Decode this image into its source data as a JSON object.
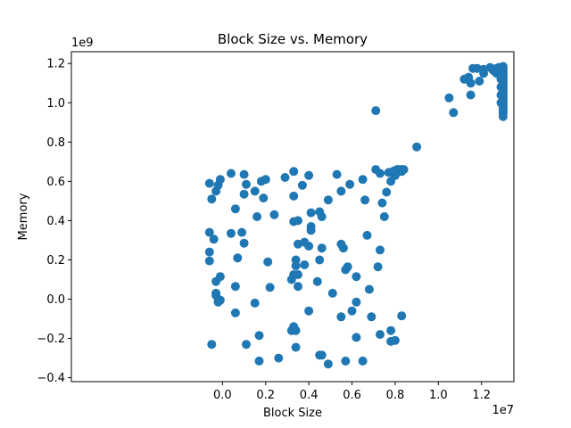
{
  "chart_data": {
    "type": "scatter",
    "title": "Block Size vs. Memory",
    "xlabel": "Block Size",
    "ylabel": "Memory",
    "x_offset_label": "1e7",
    "y_offset_label": "1e9",
    "xlim": [
      -7000000,
      13500000
    ],
    "ylim": [
      -420000000,
      1260000000
    ],
    "x_ticks": [
      0,
      2000000,
      4000000,
      6000000,
      8000000,
      10000000,
      12000000
    ],
    "x_tick_labels": [
      "0.0",
      "0.2",
      "0.4",
      "0.6",
      "0.8",
      "1.0",
      "1.2"
    ],
    "y_ticks": [
      -400000000,
      -200000000,
      0,
      200000000,
      400000000,
      600000000,
      800000000,
      1000000000,
      1200000000
    ],
    "y_tick_labels": [
      "−0.4",
      "−0.2",
      "0.0",
      "0.2",
      "0.4",
      "0.6",
      "0.8",
      "1.0",
      "1.2"
    ],
    "grid": false,
    "legend": "none",
    "marker_color": "#1f77b4",
    "points": [
      [
        -600000,
        590000000
      ],
      [
        -100000,
        610000000
      ],
      [
        400000,
        640000000
      ],
      [
        1000000,
        635000000
      ],
      [
        1800000,
        600000000
      ],
      [
        2900000,
        620000000
      ],
      [
        3300000,
        650000000
      ],
      [
        4000000,
        630000000
      ],
      [
        5300000,
        635000000
      ],
      [
        6500000,
        610000000
      ],
      [
        -200000,
        580000000
      ],
      [
        1100000,
        585000000
      ],
      [
        2000000,
        610000000
      ],
      [
        3700000,
        580000000
      ],
      [
        5900000,
        585000000
      ],
      [
        -300000,
        550000000
      ],
      [
        1500000,
        550000000
      ],
      [
        3300000,
        525000000
      ],
      [
        5500000,
        550000000
      ],
      [
        7600000,
        545000000
      ],
      [
        -500000,
        510000000
      ],
      [
        1000000,
        535000000
      ],
      [
        1900000,
        515000000
      ],
      [
        4900000,
        505000000
      ],
      [
        6600000,
        505000000
      ],
      [
        7400000,
        490000000
      ],
      [
        600000,
        460000000
      ],
      [
        2400000,
        430000000
      ],
      [
        4100000,
        440000000
      ],
      [
        4600000,
        420000000
      ],
      [
        1600000,
        420000000
      ],
      [
        3300000,
        395000000
      ],
      [
        3500000,
        400000000
      ],
      [
        7500000,
        420000000
      ],
      [
        4500000,
        445000000
      ],
      [
        4100000,
        370000000
      ],
      [
        -600000,
        340000000
      ],
      [
        400000,
        335000000
      ],
      [
        900000,
        340000000
      ],
      [
        4100000,
        350000000
      ],
      [
        -400000,
        305000000
      ],
      [
        1000000,
        285000000
      ],
      [
        3500000,
        280000000
      ],
      [
        3800000,
        290000000
      ],
      [
        4000000,
        270000000
      ],
      [
        5500000,
        280000000
      ],
      [
        6700000,
        325000000
      ],
      [
        7300000,
        250000000
      ],
      [
        4600000,
        260000000
      ],
      [
        5600000,
        260000000
      ],
      [
        -600000,
        240000000
      ],
      [
        700000,
        210000000
      ],
      [
        2100000,
        190000000
      ],
      [
        3400000,
        200000000
      ],
      [
        4500000,
        200000000
      ],
      [
        -600000,
        195000000
      ],
      [
        3400000,
        170000000
      ],
      [
        3800000,
        175000000
      ],
      [
        5700000,
        150000000
      ],
      [
        5800000,
        165000000
      ],
      [
        7200000,
        165000000
      ],
      [
        -100000,
        115000000
      ],
      [
        3300000,
        125000000
      ],
      [
        3500000,
        125000000
      ],
      [
        6200000,
        115000000
      ],
      [
        3200000,
        100000000
      ],
      [
        4400000,
        90000000
      ],
      [
        -300000,
        90000000
      ],
      [
        600000,
        65000000
      ],
      [
        2200000,
        60000000
      ],
      [
        3500000,
        65000000
      ],
      [
        6800000,
        50000000
      ],
      [
        5100000,
        30000000
      ],
      [
        -300000,
        30000000
      ],
      [
        -300000,
        20000000
      ],
      [
        -100000,
        -5000000
      ],
      [
        -200000,
        -10000000
      ],
      [
        -200000,
        -15000000
      ],
      [
        1500000,
        -20000000
      ],
      [
        6200000,
        -15000000
      ],
      [
        600000,
        -70000000
      ],
      [
        4000000,
        -60000000
      ],
      [
        6000000,
        -60000000
      ],
      [
        5500000,
        -90000000
      ],
      [
        6900000,
        -90000000
      ],
      [
        8300000,
        -85000000
      ],
      [
        3300000,
        -140000000
      ],
      [
        3200000,
        -160000000
      ],
      [
        3400000,
        -160000000
      ],
      [
        7300000,
        -180000000
      ],
      [
        1700000,
        -185000000
      ],
      [
        6200000,
        -195000000
      ],
      [
        7800000,
        -160000000
      ],
      [
        7800000,
        -215000000
      ],
      [
        8000000,
        -210000000
      ],
      [
        -500000,
        -230000000
      ],
      [
        1100000,
        -230000000
      ],
      [
        3400000,
        -245000000
      ],
      [
        4500000,
        -285000000
      ],
      [
        4600000,
        -285000000
      ],
      [
        2600000,
        -300000000
      ],
      [
        1700000,
        -315000000
      ],
      [
        4900000,
        -330000000
      ],
      [
        5700000,
        -315000000
      ],
      [
        6500000,
        -315000000
      ],
      [
        7100000,
        660000000
      ],
      [
        7300000,
        640000000
      ],
      [
        7700000,
        645000000
      ],
      [
        7800000,
        600000000
      ],
      [
        8000000,
        630000000
      ],
      [
        7900000,
        650000000
      ],
      [
        8000000,
        655000000
      ],
      [
        8100000,
        660000000
      ],
      [
        8200000,
        660000000
      ],
      [
        8300000,
        660000000
      ],
      [
        8400000,
        660000000
      ],
      [
        8100000,
        650000000
      ],
      [
        8200000,
        655000000
      ],
      [
        8300000,
        650000000
      ],
      [
        8000000,
        640000000
      ],
      [
        7100000,
        960000000
      ],
      [
        9000000,
        775000000
      ],
      [
        10500000,
        1025000000
      ],
      [
        10700000,
        950000000
      ],
      [
        11200000,
        1120000000
      ],
      [
        11400000,
        1130000000
      ],
      [
        11500000,
        1040000000
      ],
      [
        11500000,
        1100000000
      ],
      [
        11600000,
        1175000000
      ],
      [
        11800000,
        1175000000
      ],
      [
        11900000,
        1110000000
      ],
      [
        12100000,
        1150000000
      ],
      [
        12100000,
        1170000000
      ],
      [
        12400000,
        1180000000
      ],
      [
        12500000,
        1170000000
      ],
      [
        12600000,
        1160000000
      ],
      [
        12700000,
        1175000000
      ],
      [
        12800000,
        1180000000
      ],
      [
        12900000,
        1170000000
      ],
      [
        12800000,
        1160000000
      ],
      [
        12700000,
        1150000000
      ],
      [
        12900000,
        1150000000
      ],
      [
        13000000,
        1185000000
      ],
      [
        13000000,
        1175000000
      ],
      [
        13000000,
        1165000000
      ],
      [
        13000000,
        1155000000
      ],
      [
        13000000,
        1145000000
      ],
      [
        13000000,
        1135000000
      ],
      [
        13000000,
        1125000000
      ],
      [
        13000000,
        1115000000
      ],
      [
        13000000,
        1105000000
      ],
      [
        13000000,
        1095000000
      ],
      [
        13000000,
        1085000000
      ],
      [
        13000000,
        1075000000
      ],
      [
        13000000,
        1065000000
      ],
      [
        13000000,
        1055000000
      ],
      [
        13000000,
        1045000000
      ],
      [
        13000000,
        1035000000
      ],
      [
        13000000,
        1025000000
      ],
      [
        13000000,
        1015000000
      ],
      [
        13000000,
        1005000000
      ],
      [
        13000000,
        995000000
      ],
      [
        13000000,
        985000000
      ],
      [
        13000000,
        975000000
      ],
      [
        13000000,
        965000000
      ],
      [
        13000000,
        955000000
      ],
      [
        13000000,
        945000000
      ],
      [
        13000000,
        930000000
      ],
      [
        12900000,
        1120000000
      ],
      [
        12900000,
        1080000000
      ],
      [
        12900000,
        1040000000
      ],
      [
        12900000,
        1000000000
      ]
    ]
  }
}
